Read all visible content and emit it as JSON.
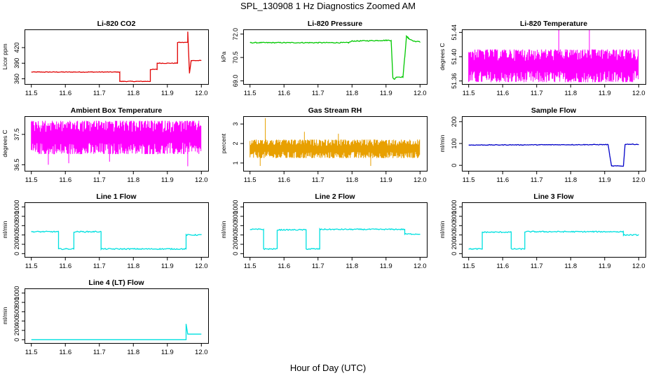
{
  "page": {
    "title": "SPL_130908  1 Hz Diagnostics Zoomed AM",
    "xlabel": "Hour of Day (UTC)"
  },
  "chart_data": [
    {
      "id": "co2",
      "type": "line",
      "title": "Li-820 CO2",
      "ylabel": "Licor ppm",
      "xlim": [
        11.48,
        12.02
      ],
      "ylim": [
        350,
        455
      ],
      "xticks": [
        11.5,
        11.6,
        11.7,
        11.8,
        11.9,
        12.0
      ],
      "yticks": [
        360,
        390,
        420
      ],
      "color": "#e00000",
      "noise": 0.6,
      "series": [
        {
          "x": [
            11.5,
            11.76,
            11.76,
            11.85,
            11.85,
            11.87,
            11.87,
            11.93,
            11.93,
            11.96,
            11.96,
            11.965,
            11.965,
            11.97,
            11.97,
            12.0
          ],
          "y": [
            373,
            373,
            355,
            355,
            378,
            378,
            390,
            390,
            430,
            430,
            451,
            371,
            371,
            395,
            395,
            395
          ]
        }
      ]
    },
    {
      "id": "pressure",
      "type": "line",
      "title": "Li-820 Pressure",
      "ylabel": "kPa",
      "xlim": [
        11.48,
        12.02
      ],
      "ylim": [
        68.8,
        72.3
      ],
      "xticks": [
        11.5,
        11.6,
        11.7,
        11.8,
        11.9,
        12.0
      ],
      "yticks": [
        69.0,
        70.5,
        72.0
      ],
      "color": "#00c800",
      "noise": 0.03,
      "series": [
        {
          "x": [
            11.5,
            11.79,
            11.8,
            11.9,
            11.915,
            11.92,
            11.925,
            11.93,
            11.95,
            11.955,
            11.96,
            11.965,
            11.98,
            12.0
          ],
          "y": [
            71.45,
            71.45,
            71.55,
            71.6,
            71.6,
            69.2,
            69.1,
            69.25,
            69.25,
            70.5,
            71.85,
            71.75,
            71.55,
            71.5
          ]
        }
      ]
    },
    {
      "id": "licor_temp",
      "type": "band",
      "title": "Li-820 Temperature",
      "ylabel": "degrees C",
      "xlim": [
        11.48,
        12.02
      ],
      "ylim": [
        51.355,
        51.445
      ],
      "xticks": [
        11.5,
        11.6,
        11.7,
        11.8,
        11.9,
        12.0
      ],
      "yticks": [
        51.36,
        51.4,
        51.44
      ],
      "color": "#ff00ff",
      "band": [
        51.358,
        51.412
      ],
      "band_xrange": [
        11.5,
        12.0
      ],
      "spikes": [
        {
          "x": 11.765,
          "y": 51.445
        },
        {
          "x": 11.855,
          "y": 51.445
        }
      ]
    },
    {
      "id": "ambient_temp",
      "type": "band",
      "title": "Ambient Box Temperature",
      "ylabel": "degrees C",
      "xlim": [
        11.48,
        12.02
      ],
      "ylim": [
        36.3,
        38.1
      ],
      "xticks": [
        11.5,
        11.6,
        11.7,
        11.8,
        11.9,
        12.0
      ],
      "yticks": [
        36.5,
        37.5
      ],
      "color": "#ff00ff",
      "band": [
        36.85,
        37.95
      ],
      "band_xrange": [
        11.5,
        12.0
      ],
      "spikes": [
        {
          "x": 11.55,
          "y": 36.5
        },
        {
          "x": 11.61,
          "y": 36.55
        },
        {
          "x": 11.96,
          "y": 36.45
        },
        {
          "x": 11.73,
          "y": 36.6
        }
      ]
    },
    {
      "id": "rh",
      "type": "band",
      "title": "Gas Stream RH",
      "ylabel": "percent",
      "xlim": [
        11.48,
        12.02
      ],
      "ylim": [
        0.6,
        3.4
      ],
      "xticks": [
        11.5,
        11.6,
        11.7,
        11.8,
        11.9,
        12.0
      ],
      "yticks": [
        1.0,
        2.0,
        3.0
      ],
      "color": "#e8a000",
      "band": [
        1.25,
        2.2
      ],
      "band_xrange": [
        11.5,
        12.0
      ],
      "spikes": [
        {
          "x": 11.545,
          "y": 3.3
        },
        {
          "x": 11.53,
          "y": 0.85
        },
        {
          "x": 11.66,
          "y": 2.6
        },
        {
          "x": 11.855,
          "y": 0.85
        },
        {
          "x": 11.76,
          "y": 2.5
        }
      ]
    },
    {
      "id": "sample_flow",
      "type": "line",
      "title": "Sample Flow",
      "ylabel": "ml/min",
      "xlim": [
        11.48,
        12.02
      ],
      "ylim": [
        -25,
        225
      ],
      "xticks": [
        11.5,
        11.6,
        11.7,
        11.8,
        11.9,
        12.0
      ],
      "yticks": [
        0,
        100,
        200
      ],
      "color": "#0000c8",
      "noise": 1.5,
      "series": [
        {
          "x": [
            11.5,
            11.91,
            11.92,
            11.955,
            11.96,
            12.0
          ],
          "y": [
            93,
            95,
            -3,
            -3,
            97,
            96
          ]
        }
      ]
    },
    {
      "id": "line1_flow",
      "type": "line",
      "title": "Line 1 Flow",
      "ylabel": "ml/min",
      "xlim": [
        11.48,
        12.02
      ],
      "ylim": [
        -70,
        1100
      ],
      "xticks": [
        11.5,
        11.6,
        11.7,
        11.8,
        11.9,
        12.0
      ],
      "yticks": [
        0,
        200,
        400,
        600,
        800,
        1000
      ],
      "color": "#00e0e0",
      "noise": 12,
      "series": [
        {
          "x": [
            11.5,
            11.58,
            11.58,
            11.625,
            11.625,
            11.705,
            11.705,
            11.955,
            11.955,
            12.0
          ],
          "y": [
            470,
            470,
            100,
            100,
            470,
            470,
            100,
            100,
            400,
            400
          ]
        }
      ]
    },
    {
      "id": "line2_flow",
      "type": "line",
      "title": "Line 2 Flow",
      "ylabel": "ml/min",
      "xlim": [
        11.48,
        12.02
      ],
      "ylim": [
        -70,
        1100
      ],
      "xticks": [
        11.5,
        11.6,
        11.7,
        11.8,
        11.9,
        12.0
      ],
      "yticks": [
        0,
        200,
        400,
        600,
        800,
        1000
      ],
      "color": "#00e0e0",
      "noise": 12,
      "series": [
        {
          "x": [
            11.5,
            11.54,
            11.54,
            11.58,
            11.58,
            11.665,
            11.665,
            11.705,
            11.705,
            11.955,
            11.955,
            12.0
          ],
          "y": [
            520,
            520,
            100,
            100,
            510,
            510,
            100,
            100,
            520,
            520,
            420,
            420
          ]
        }
      ]
    },
    {
      "id": "line3_flow",
      "type": "line",
      "title": "Line 3 Flow",
      "ylabel": "ml/min",
      "xlim": [
        11.48,
        12.02
      ],
      "ylim": [
        -70,
        1100
      ],
      "xticks": [
        11.5,
        11.6,
        11.7,
        11.8,
        11.9,
        12.0
      ],
      "yticks": [
        0,
        200,
        400,
        600,
        800,
        1000
      ],
      "color": "#00e0e0",
      "noise": 12,
      "series": [
        {
          "x": [
            11.5,
            11.54,
            11.54,
            11.625,
            11.625,
            11.665,
            11.665,
            11.955,
            11.955,
            12.0
          ],
          "y": [
            100,
            100,
            460,
            460,
            100,
            100,
            470,
            470,
            400,
            400
          ]
        }
      ]
    },
    {
      "id": "line4_flow",
      "type": "line",
      "title": "Line 4 (LT) Flow",
      "ylabel": "ml/min",
      "xlim": [
        11.48,
        12.02
      ],
      "ylim": [
        -70,
        1100
      ],
      "xticks": [
        11.5,
        11.6,
        11.7,
        11.8,
        11.9,
        12.0
      ],
      "yticks": [
        0,
        200,
        400,
        600,
        800,
        1000
      ],
      "color": "#00e0e0",
      "noise": 0,
      "series": [
        {
          "x": [
            11.5,
            11.955,
            11.955,
            11.96,
            11.965,
            12.0
          ],
          "y": [
            0,
            0,
            340,
            120,
            120,
            120
          ]
        }
      ]
    }
  ]
}
